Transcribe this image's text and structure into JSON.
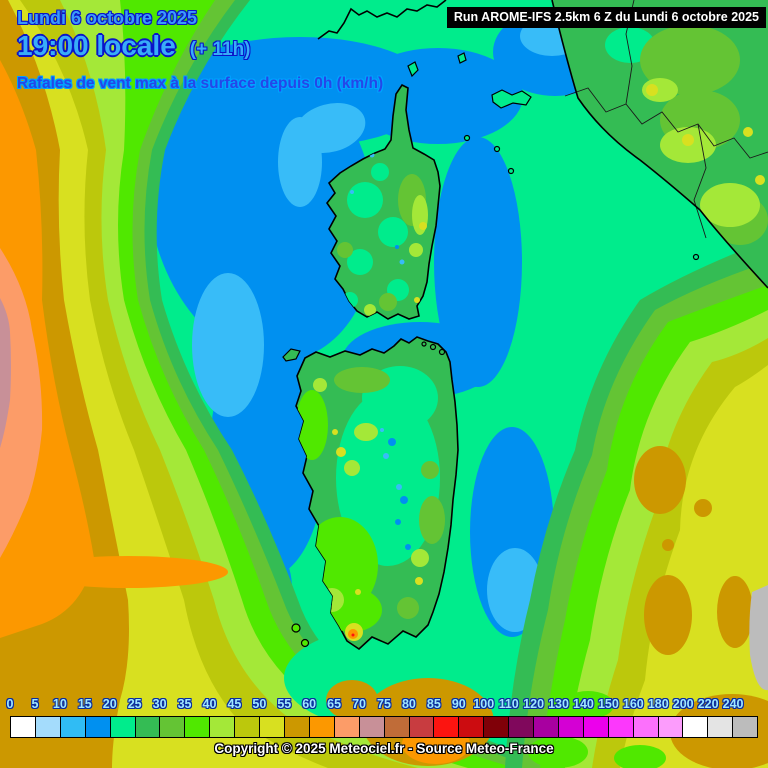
{
  "header": {
    "date": "Lundi 6 octobre 2025",
    "time": "19:00 locale",
    "offset": "(+ 11h)",
    "subtitle": "Rafales de vent max à la surface depuis 0h (km/h)",
    "run_info": "Run AROME-IFS 2.5km 6 Z du Lundi 6 octobre 2025"
  },
  "legend": {
    "unit": "km/h",
    "stops": [
      {
        "value": "0",
        "color": "#FFFFFF"
      },
      {
        "value": "5",
        "color": "#A4DCFC"
      },
      {
        "value": "10",
        "color": "#30BCF4"
      },
      {
        "value": "15",
        "color": "#0090F0"
      },
      {
        "value": "20",
        "color": "#00EC8C"
      },
      {
        "value": "25",
        "color": "#34BC54"
      },
      {
        "value": "30",
        "color": "#64C434"
      },
      {
        "value": "35",
        "color": "#50E800"
      },
      {
        "value": "40",
        "color": "#A4E838"
      },
      {
        "value": "45",
        "color": "#BCC80C"
      },
      {
        "value": "50",
        "color": "#D8E020"
      },
      {
        "value": "55",
        "color": "#CC9800"
      },
      {
        "value": "60",
        "color": "#FC9800"
      },
      {
        "value": "65",
        "color": "#FC9C68"
      },
      {
        "value": "70",
        "color": "#C89098"
      },
      {
        "value": "75",
        "color": "#C06C38"
      },
      {
        "value": "80",
        "color": "#C83C40"
      },
      {
        "value": "85",
        "color": "#FC1410"
      },
      {
        "value": "90",
        "color": "#CC0C10"
      },
      {
        "value": "100",
        "color": "#800008"
      },
      {
        "value": "110",
        "color": "#80085C"
      },
      {
        "value": "120",
        "color": "#A800A0"
      },
      {
        "value": "130",
        "color": "#D400D4"
      },
      {
        "value": "140",
        "color": "#EC00EC"
      },
      {
        "value": "150",
        "color": "#FC38FC"
      },
      {
        "value": "160",
        "color": "#FC70FC"
      },
      {
        "value": "180",
        "color": "#FC9CFC"
      },
      {
        "value": "200",
        "color": "#FFFFFF"
      },
      {
        "value": "220",
        "color": "#E4E4E4"
      },
      {
        "value": "240",
        "color": "#BCBCBC"
      }
    ]
  },
  "footer": {
    "copyright": "Copyright © 2025 Meteociel.fr - Source Meteo-France"
  },
  "colors": {
    "title_text": "#3A9BFA",
    "title_outline": "#0A14C8",
    "subtitle_text": "#2547E8",
    "subtitle_outline": "#00A2FF",
    "run_box_bg": "#000000",
    "run_box_text": "#FFFFFF",
    "legend_tick_text": "#A0E8FF",
    "legend_tick_outline": "#0A2C9E",
    "copyright_text": "#FFFFFF",
    "sea_low_wind": "#0090F0",
    "sea_calm": "#38BCF8",
    "base_field": "#00EC8C",
    "coastline": "#000000"
  }
}
